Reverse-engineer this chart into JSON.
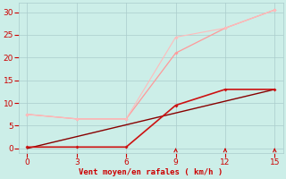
{
  "bg_color": "#cceee8",
  "grid_color": "#aacccc",
  "xlabel": "Vent moyen/en rafales ( km/h )",
  "xlabel_color": "#cc0000",
  "tick_color": "#cc0000",
  "xlim": [
    -0.5,
    15.5
  ],
  "ylim": [
    -1,
    32
  ],
  "xticks": [
    0,
    3,
    6,
    9,
    12,
    15
  ],
  "yticks": [
    0,
    5,
    10,
    15,
    20,
    25,
    30
  ],
  "line1": {
    "x": [
      0,
      3,
      6,
      9,
      12,
      15
    ],
    "y": [
      7.5,
      6.5,
      6.5,
      21.0,
      26.5,
      30.5
    ],
    "color": "#ff9999",
    "lw": 0.9,
    "marker": "D",
    "ms": 2.0
  },
  "line2": {
    "x": [
      0,
      3,
      6,
      9,
      12,
      15
    ],
    "y": [
      7.5,
      6.5,
      6.5,
      24.5,
      26.5,
      30.5
    ],
    "color": "#ffbbbb",
    "lw": 0.8,
    "marker": "D",
    "ms": 2.0
  },
  "line3": {
    "x": [
      0,
      3,
      6,
      9,
      12,
      15
    ],
    "y": [
      0.3,
      0.3,
      0.3,
      9.5,
      13.0,
      13.0
    ],
    "color": "#cc1111",
    "lw": 1.2,
    "marker": "D",
    "ms": 2.0
  },
  "line4": {
    "x": [
      0,
      15
    ],
    "y": [
      0.0,
      13.0
    ],
    "color": "#880000",
    "lw": 1.0
  },
  "arrows": {
    "x": [
      9,
      12,
      15
    ],
    "color": "#cc0000",
    "size": 6
  }
}
